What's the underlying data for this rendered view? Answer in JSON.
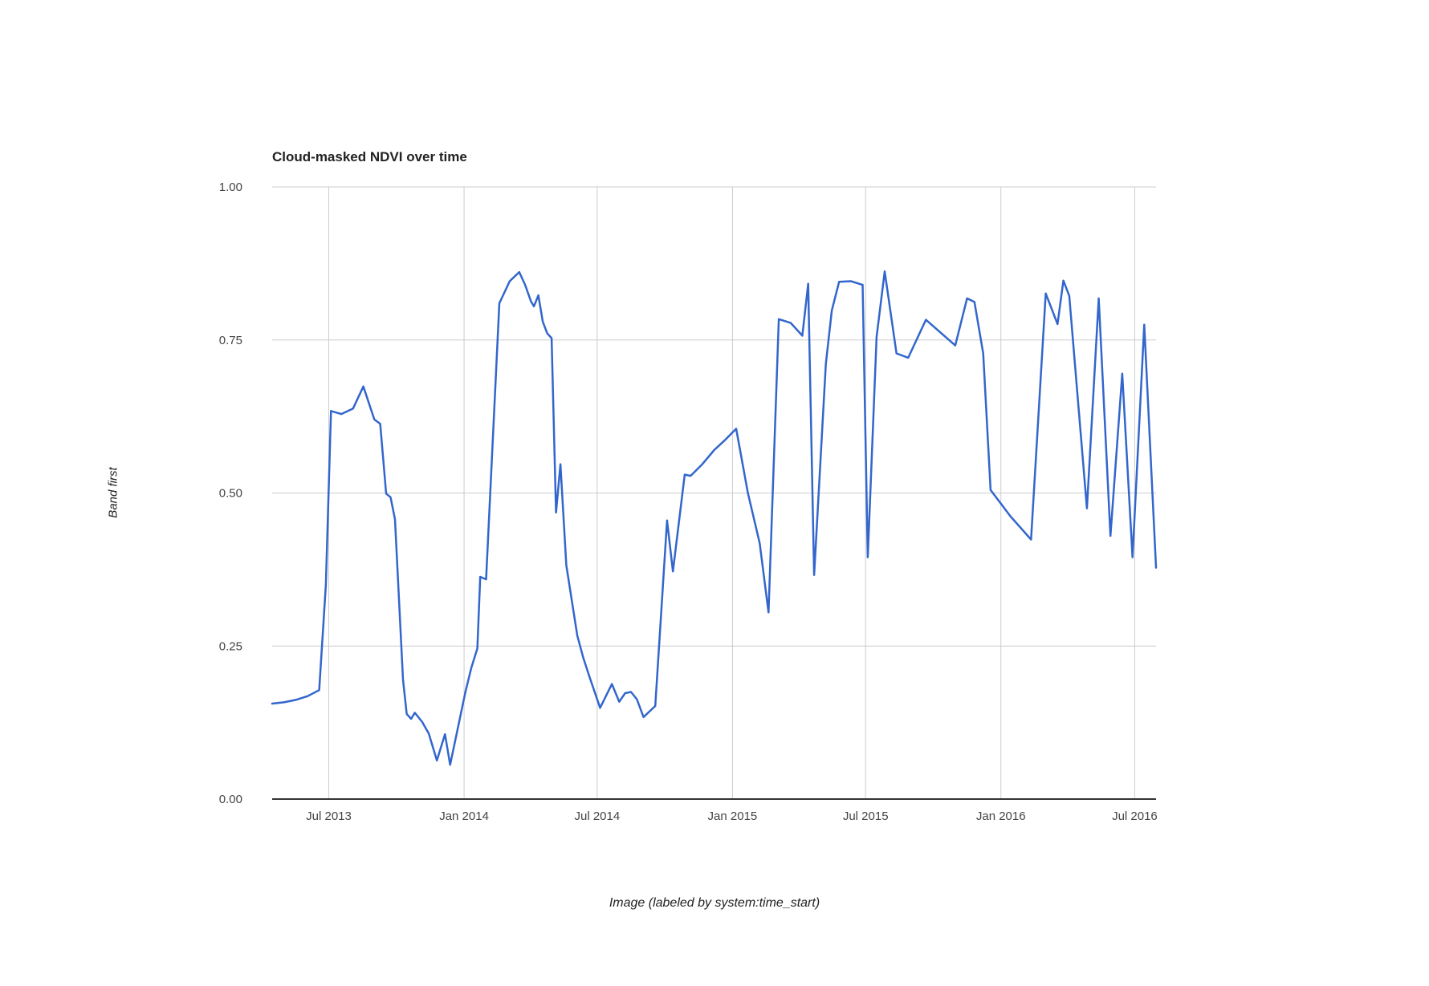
{
  "page": {
    "background": "#ffffff"
  },
  "chart_data": {
    "type": "line",
    "title": "Cloud-masked NDVI over time",
    "xlabel": "Image (labeled by system:time_start)",
    "ylabel": "Band first",
    "legend": "none",
    "grid": true,
    "ylim": [
      0,
      1
    ],
    "x_range": [
      "2013-04-15",
      "2016-07-30"
    ],
    "y_ticks": [
      {
        "v": 1.0,
        "label": "1.00"
      },
      {
        "v": 0.75,
        "label": "0.75"
      },
      {
        "v": 0.5,
        "label": "0.50"
      },
      {
        "v": 0.25,
        "label": "0.25"
      },
      {
        "v": 0.0,
        "label": "0.00"
      }
    ],
    "x_ticks": [
      {
        "date": "2013-07-01",
        "label": "Jul 2013"
      },
      {
        "date": "2014-01-01",
        "label": "Jan 2014"
      },
      {
        "date": "2014-07-01",
        "label": "Jul 2014"
      },
      {
        "date": "2015-01-01",
        "label": "Jan 2015"
      },
      {
        "date": "2015-07-01",
        "label": "Jul 2015"
      },
      {
        "date": "2016-01-01",
        "label": "Jan 2016"
      },
      {
        "date": "2016-07-01",
        "label": "Jul 2016"
      }
    ],
    "colors": {
      "line": "#3366cc",
      "grid": "#cccccc",
      "axis": "#333333",
      "tick_label": "#444444",
      "title": "#222222",
      "background": "#ffffff"
    },
    "series": [
      {
        "name": "first",
        "color": "#3366cc",
        "points": [
          [
            "2013-04-15",
            0.156
          ],
          [
            "2013-05-01",
            0.158
          ],
          [
            "2013-05-17",
            0.162
          ],
          [
            "2013-06-02",
            0.168
          ],
          [
            "2013-06-18",
            0.178
          ],
          [
            "2013-06-27",
            0.35
          ],
          [
            "2013-07-04",
            0.634
          ],
          [
            "2013-07-18",
            0.629
          ],
          [
            "2013-08-03",
            0.638
          ],
          [
            "2013-08-17",
            0.674
          ],
          [
            "2013-09-01",
            0.62
          ],
          [
            "2013-09-09",
            0.613
          ],
          [
            "2013-09-17",
            0.499
          ],
          [
            "2013-09-23",
            0.493
          ],
          [
            "2013-09-29",
            0.457
          ],
          [
            "2013-10-10",
            0.195
          ],
          [
            "2013-10-15",
            0.139
          ],
          [
            "2013-10-21",
            0.131
          ],
          [
            "2013-10-26",
            0.141
          ],
          [
            "2013-11-05",
            0.126
          ],
          [
            "2013-11-14",
            0.107
          ],
          [
            "2013-11-25",
            0.063
          ],
          [
            "2013-12-06",
            0.106
          ],
          [
            "2013-12-13",
            0.056
          ],
          [
            "2014-01-03",
            0.176
          ],
          [
            "2014-01-11",
            0.215
          ],
          [
            "2014-01-19",
            0.246
          ],
          [
            "2014-01-23",
            0.363
          ],
          [
            "2014-01-31",
            0.359
          ],
          [
            "2014-02-18",
            0.81
          ],
          [
            "2014-03-04",
            0.846
          ],
          [
            "2014-03-17",
            0.861
          ],
          [
            "2014-03-25",
            0.84
          ],
          [
            "2014-04-02",
            0.813
          ],
          [
            "2014-04-06",
            0.805
          ],
          [
            "2014-04-12",
            0.823
          ],
          [
            "2014-04-18",
            0.78
          ],
          [
            "2014-04-24",
            0.761
          ],
          [
            "2014-04-30",
            0.753
          ],
          [
            "2014-05-06",
            0.468
          ],
          [
            "2014-05-12",
            0.547
          ],
          [
            "2014-05-20",
            0.382
          ],
          [
            "2014-06-04",
            0.267
          ],
          [
            "2014-06-12",
            0.231
          ],
          [
            "2014-06-21",
            0.198
          ],
          [
            "2014-07-05",
            0.149
          ],
          [
            "2014-07-21",
            0.188
          ],
          [
            "2014-07-31",
            0.159
          ],
          [
            "2014-08-08",
            0.173
          ],
          [
            "2014-08-16",
            0.175
          ],
          [
            "2014-08-24",
            0.163
          ],
          [
            "2014-09-02",
            0.134
          ],
          [
            "2014-09-18",
            0.152
          ],
          [
            "2014-10-04",
            0.455
          ],
          [
            "2014-10-12",
            0.372
          ],
          [
            "2014-10-28",
            0.53
          ],
          [
            "2014-11-05",
            0.528
          ],
          [
            "2014-11-21",
            0.547
          ],
          [
            "2014-12-07",
            0.57
          ],
          [
            "2014-12-23",
            0.588
          ],
          [
            "2015-01-06",
            0.605
          ],
          [
            "2015-01-22",
            0.5
          ],
          [
            "2015-02-07",
            0.418
          ],
          [
            "2015-02-19",
            0.305
          ],
          [
            "2015-03-05",
            0.784
          ],
          [
            "2015-03-21",
            0.778
          ],
          [
            "2015-04-06",
            0.757
          ],
          [
            "2015-04-14",
            0.842
          ],
          [
            "2015-04-22",
            0.366
          ],
          [
            "2015-05-08",
            0.711
          ],
          [
            "2015-05-16",
            0.798
          ],
          [
            "2015-05-26",
            0.845
          ],
          [
            "2015-06-11",
            0.846
          ],
          [
            "2015-06-27",
            0.84
          ],
          [
            "2015-07-04",
            0.395
          ],
          [
            "2015-07-16",
            0.755
          ],
          [
            "2015-07-27",
            0.862
          ],
          [
            "2015-08-12",
            0.728
          ],
          [
            "2015-08-28",
            0.721
          ],
          [
            "2015-09-21",
            0.783
          ],
          [
            "2015-10-31",
            0.741
          ],
          [
            "2015-11-16",
            0.818
          ],
          [
            "2015-11-26",
            0.812
          ],
          [
            "2015-12-08",
            0.728
          ],
          [
            "2015-12-18",
            0.505
          ],
          [
            "2016-01-14",
            0.462
          ],
          [
            "2016-02-11",
            0.424
          ],
          [
            "2016-03-02",
            0.826
          ],
          [
            "2016-03-18",
            0.776
          ],
          [
            "2016-03-26",
            0.847
          ],
          [
            "2016-04-03",
            0.822
          ],
          [
            "2016-04-27",
            0.475
          ],
          [
            "2016-05-13",
            0.818
          ],
          [
            "2016-05-29",
            0.43
          ],
          [
            "2016-06-14",
            0.695
          ],
          [
            "2016-06-28",
            0.395
          ],
          [
            "2016-07-14",
            0.775
          ],
          [
            "2016-07-30",
            0.378
          ]
        ]
      }
    ]
  }
}
